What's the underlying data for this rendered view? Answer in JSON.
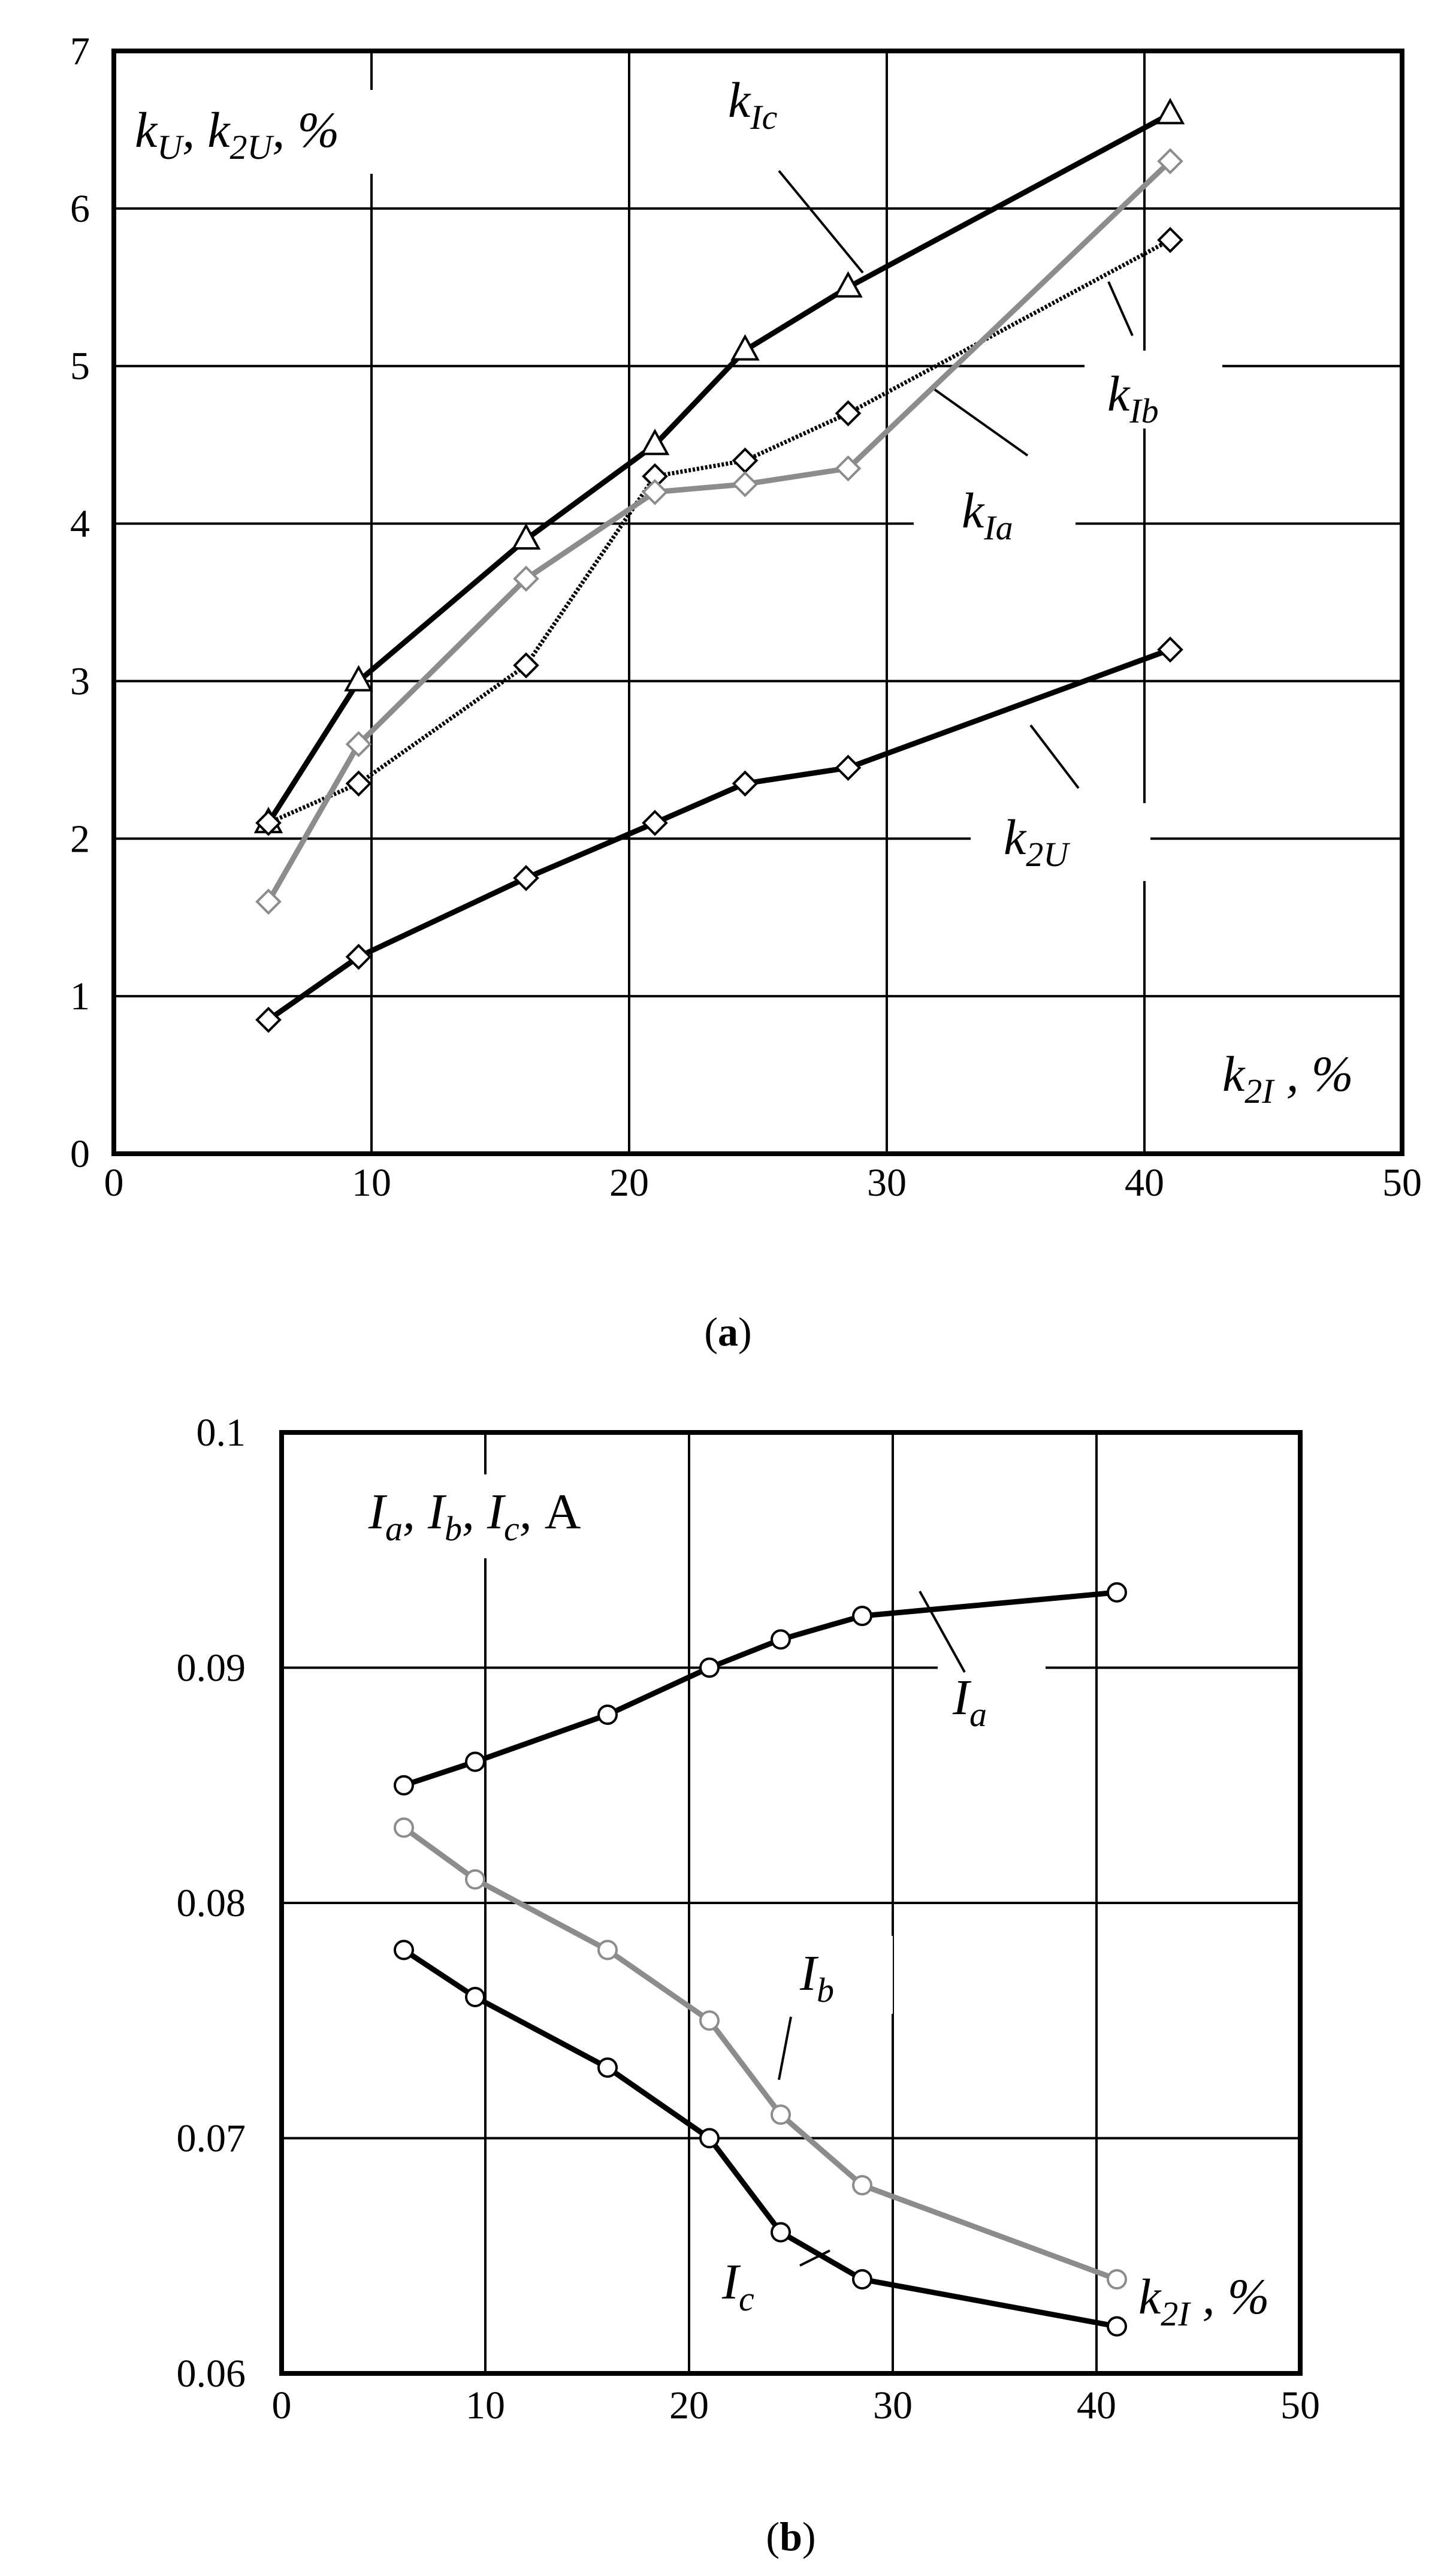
{
  "chart_data": [
    {
      "type": "line",
      "caption": "(a)",
      "xlim": [
        0,
        50
      ],
      "ylim": [
        0,
        7
      ],
      "xticks": [
        "0",
        "10",
        "20",
        "30",
        "40",
        "50"
      ],
      "yticks": [
        "0",
        "1",
        "2",
        "3",
        "4",
        "5",
        "6",
        "7"
      ],
      "ylabel": "k_U, k_2U, %",
      "xlabel": "k_2I, %",
      "grid": true,
      "series": [
        {
          "name": "k_Ic",
          "color": "#000000",
          "marker": "triangle",
          "x": [
            6,
            9.5,
            16,
            21,
            24.5,
            28.5,
            41
          ],
          "y": [
            2.1,
            3.0,
            3.9,
            4.5,
            5.1,
            5.5,
            6.6
          ]
        },
        {
          "name": "k_Ib",
          "color": "#000000",
          "marker": "diamond",
          "dotted": true,
          "x": [
            6,
            9.5,
            16,
            21,
            24.5,
            28.5,
            41
          ],
          "y": [
            2.1,
            2.35,
            3.1,
            4.3,
            4.4,
            4.7,
            5.8
          ]
        },
        {
          "name": "k_Ia",
          "color": "#8c8c8c",
          "marker": "diamond",
          "x": [
            6,
            9.5,
            16,
            21,
            24.5,
            28.5,
            41
          ],
          "y": [
            1.6,
            2.6,
            3.65,
            4.2,
            4.25,
            4.35,
            6.3
          ]
        },
        {
          "name": "k_2U",
          "color": "#000000",
          "marker": "diamond",
          "x": [
            6,
            9.5,
            16,
            21,
            24.5,
            28.5,
            41
          ],
          "y": [
            0.85,
            1.25,
            1.75,
            2.1,
            2.35,
            2.45,
            3.2
          ]
        }
      ]
    },
    {
      "type": "line",
      "caption": "(b)",
      "xlim": [
        0,
        50
      ],
      "ylim": [
        0.06,
        0.1
      ],
      "xticks": [
        "0",
        "10",
        "20",
        "30",
        "40",
        "50"
      ],
      "yticks": [
        "0.06",
        "0.07",
        "0.08",
        "0.09",
        "0.1"
      ],
      "ylabel": "I_a, I_b, I_c, A",
      "xlabel": "k_2I, %",
      "grid": true,
      "series": [
        {
          "name": "I_a",
          "color": "#000000",
          "marker": "circle",
          "x": [
            6,
            9.5,
            16,
            21,
            24.5,
            28.5,
            41
          ],
          "y": [
            0.085,
            0.086,
            0.088,
            0.09,
            0.0912,
            0.0922,
            0.0932
          ]
        },
        {
          "name": "I_b",
          "color": "#8c8c8c",
          "marker": "circle",
          "x": [
            6,
            9.5,
            16,
            21,
            24.5,
            28.5,
            41
          ],
          "y": [
            0.0832,
            0.081,
            0.078,
            0.075,
            0.071,
            0.068,
            0.064
          ]
        },
        {
          "name": "I_c",
          "color": "#000000",
          "marker": "circle",
          "x": [
            6,
            9.5,
            16,
            21,
            24.5,
            28.5,
            41
          ],
          "y": [
            0.078,
            0.076,
            0.073,
            0.07,
            0.066,
            0.064,
            0.062
          ]
        }
      ]
    }
  ]
}
